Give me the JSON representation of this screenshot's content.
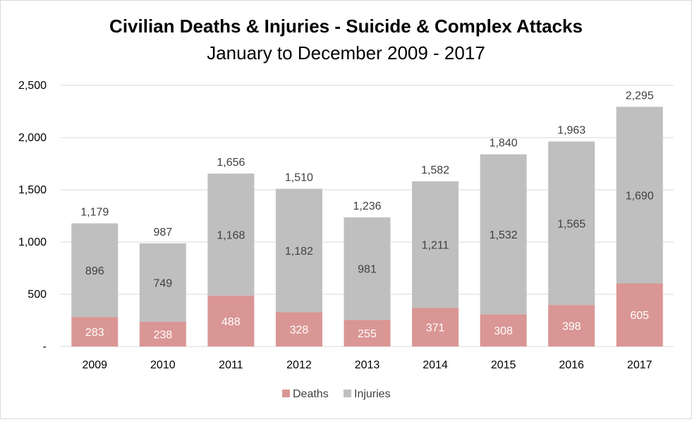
{
  "chart_data": {
    "type": "bar",
    "stacked": true,
    "title": "Civilian Deaths & Injuries - Suicide & Complex Attacks",
    "subtitle": "January to December 2009 - 2017",
    "categories": [
      "2009",
      "2010",
      "2011",
      "2012",
      "2013",
      "2014",
      "2015",
      "2016",
      "2017"
    ],
    "series": [
      {
        "name": "Deaths",
        "color": "#d99694",
        "values": [
          283,
          238,
          488,
          328,
          255,
          371,
          308,
          398,
          605
        ]
      },
      {
        "name": "Injuries",
        "color": "#bfbfbf",
        "values": [
          896,
          749,
          1168,
          1182,
          981,
          1211,
          1532,
          1565,
          1690
        ]
      }
    ],
    "totals": [
      1179,
      987,
      1656,
      1510,
      1236,
      1582,
      1840,
      1963,
      2295
    ],
    "ylim": [
      0,
      2500
    ],
    "yticks": [
      0,
      500,
      1000,
      1500,
      2000,
      2500
    ],
    "ytick_labels": [
      "-",
      "500",
      "1,000",
      "1,500",
      "2,000",
      "2,500"
    ],
    "grid": true,
    "legend": "bottom-center"
  }
}
